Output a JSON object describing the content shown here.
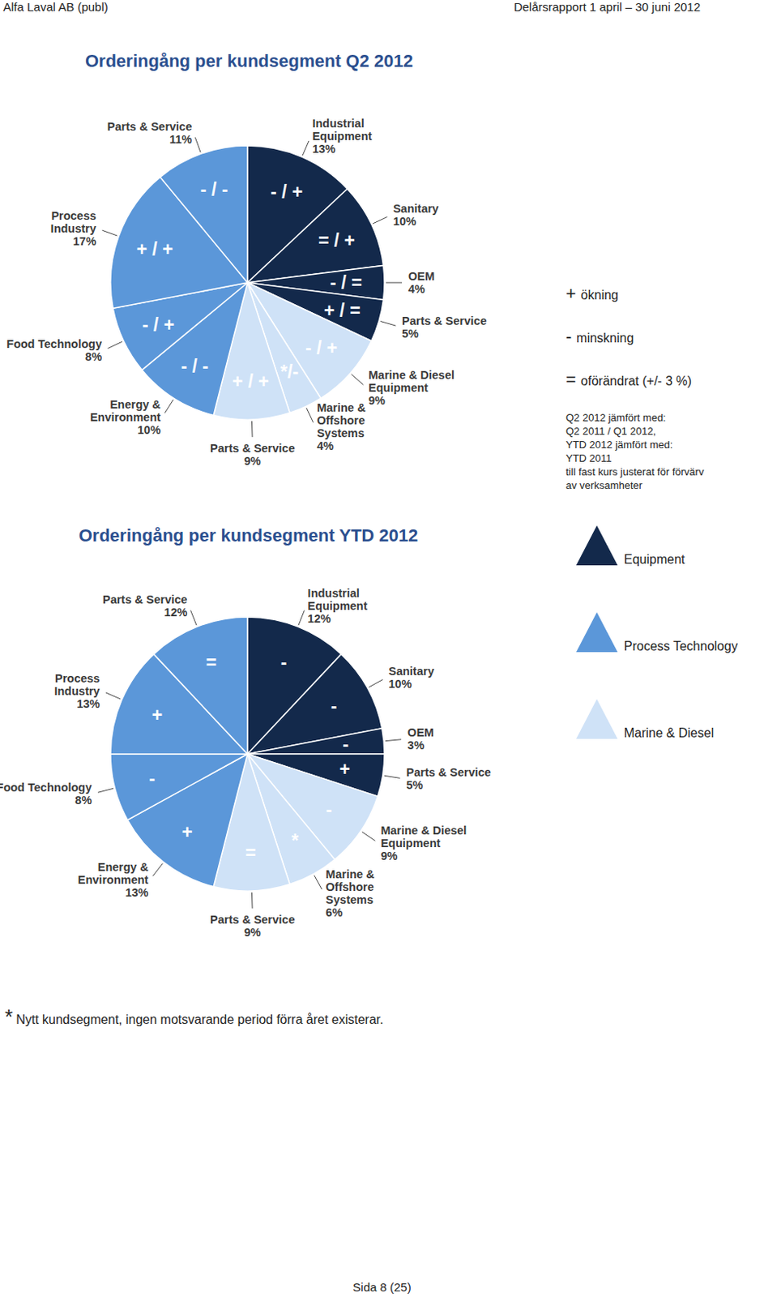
{
  "header": {
    "left": "Alfa Laval AB (publ)",
    "right": "Delårsrapport 1 april – 30 juni 2012"
  },
  "chart_data": [
    {
      "type": "pie",
      "title": "Orderingång per kundsegment Q2 2012",
      "categories": [
        "Industrial Equipment",
        "Sanitary",
        "OEM",
        "Parts & Service",
        "Marine & Diesel Equipment",
        "Marine & Offshore Systems",
        "Parts & Service",
        "Energy & Environment",
        "Food Technology",
        "Process Industry",
        "Parts & Service"
      ],
      "values": [
        13,
        10,
        4,
        5,
        9,
        4,
        9,
        10,
        8,
        17,
        11
      ],
      "value_labels": [
        "13%",
        "10%",
        "4%",
        "5%",
        "9%",
        "4%",
        "9%",
        "10%",
        "8%",
        "17%",
        "11%"
      ],
      "data_labels": true,
      "colors": [
        "#13294b",
        "#13294b",
        "#13294b",
        "#13294b",
        "#cfe2f7",
        "#cfe2f7",
        "#cfe2f7",
        "#5b97d9",
        "#5b97d9",
        "#5b97d9",
        "#5b97d9"
      ],
      "annotations": [
        "- / +",
        "= / +",
        "- / =",
        "+ / =",
        "- / +",
        "*/-",
        "+ / +",
        "- / -",
        "- / +",
        "+ / +",
        "- / -"
      ]
    },
    {
      "type": "pie",
      "title": "Orderingång per kundsegment YTD 2012",
      "categories": [
        "Industrial Equipment",
        "Sanitary",
        "OEM",
        "Parts & Service",
        "Marine & Diesel Equipment",
        "Marine & Offshore Systems",
        "Parts & Service",
        "Energy & Environment",
        "Food Technology",
        "Process Industry",
        "Parts & Service"
      ],
      "values": [
        12,
        10,
        3,
        5,
        9,
        6,
        9,
        13,
        8,
        13,
        12
      ],
      "value_labels": [
        "12%",
        "10%",
        "3%",
        "5%",
        "9%",
        "6%",
        "9%",
        "13%",
        "8%",
        "13%",
        "12%"
      ],
      "data_labels": true,
      "colors": [
        "#13294b",
        "#13294b",
        "#13294b",
        "#13294b",
        "#cfe2f7",
        "#cfe2f7",
        "#cfe2f7",
        "#5b97d9",
        "#5b97d9",
        "#5b97d9",
        "#5b97d9"
      ],
      "annotations": [
        "-",
        "-",
        "-",
        "+",
        "-",
        "*",
        "=",
        "+",
        "-",
        "+",
        "="
      ]
    }
  ],
  "legend": {
    "symbols": [
      {
        "symbol": "+",
        "text": "ökning"
      },
      {
        "symbol": "-",
        "text": "minskning"
      },
      {
        "symbol": "=",
        "text": "oförändrat (+/- 3 %)"
      }
    ],
    "note": [
      "Q2 2012 jämfört med:",
      "Q2 2011 / Q1 2012,",
      "YTD 2012 jämfört med:",
      "YTD 2011",
      "till fast kurs justerat för förvärv",
      "av verksamheter"
    ],
    "groups": [
      {
        "name": "Equipment",
        "color": "#13294b"
      },
      {
        "name": "Process Technology",
        "color": "#5b97d9"
      },
      {
        "name": "Marine & Diesel",
        "color": "#cfe2f7"
      }
    ]
  },
  "footnote": {
    "mark": "*",
    "text": "Nytt kundsegment, ingen motsvarande period förra året existerar."
  },
  "page": "Sida 8 (25)"
}
